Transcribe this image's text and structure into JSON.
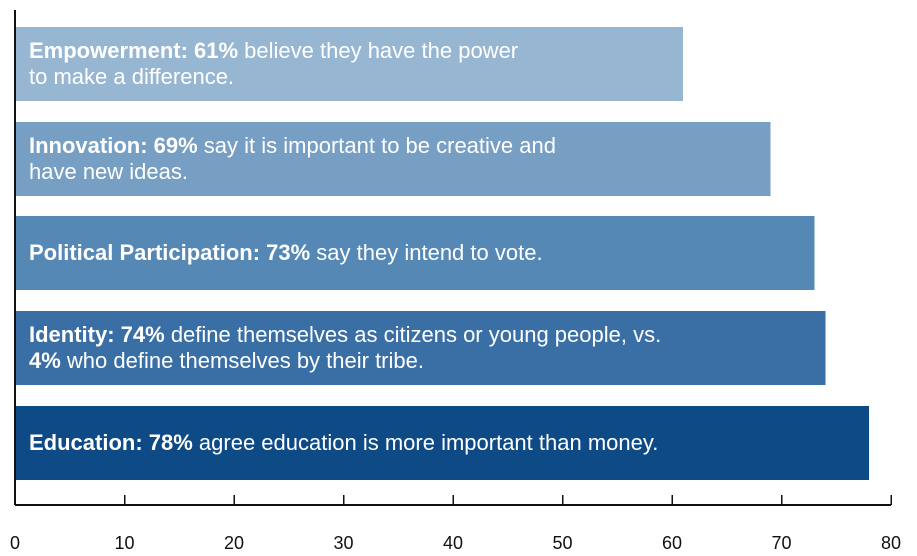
{
  "chart_data": {
    "type": "bar",
    "orientation": "horizontal",
    "title": "",
    "xlabel": "",
    "ylabel": "",
    "xlim": [
      0,
      80
    ],
    "xticks": [
      "0",
      "10",
      "20",
      "30",
      "40",
      "50",
      "60",
      "70",
      "80"
    ],
    "grid": false,
    "legend": "none",
    "categories": [
      "Empowerment",
      "Innovation",
      "Political Participation",
      "Identity",
      "Education"
    ],
    "values": [
      61,
      69,
      73,
      74,
      78
    ],
    "colors": [
      "#97b6d2",
      "#779fc3",
      "#5688b6",
      "#3a6fa5",
      "#0e4a85"
    ],
    "labels": [
      [
        [
          {
            "t": "Empowerment: 61%",
            "b": true
          },
          {
            "t": " believe they have the power",
            "b": false
          }
        ],
        [
          {
            "t": "to make a difference.",
            "b": false
          }
        ]
      ],
      [
        [
          {
            "t": "Innovation: 69%",
            "b": true
          },
          {
            "t": " say it is important to be creative and",
            "b": false
          }
        ],
        [
          {
            "t": "have new ideas.",
            "b": false
          }
        ]
      ],
      [
        [
          {
            "t": "Political Participation: 73%",
            "b": true
          },
          {
            "t": " say they intend to vote.",
            "b": false
          }
        ]
      ],
      [
        [
          {
            "t": "Identity: 74%",
            "b": true
          },
          {
            "t": " define themselves as citizens or young people, vs.",
            "b": false
          }
        ],
        [
          {
            "t": "4%",
            "b": true
          },
          {
            "t": " who define themselves by their tribe.",
            "b": false
          }
        ]
      ],
      [
        [
          {
            "t": "Education: 78%",
            "b": true
          },
          {
            "t": " agree education is more important than money.",
            "b": false
          }
        ]
      ]
    ]
  }
}
